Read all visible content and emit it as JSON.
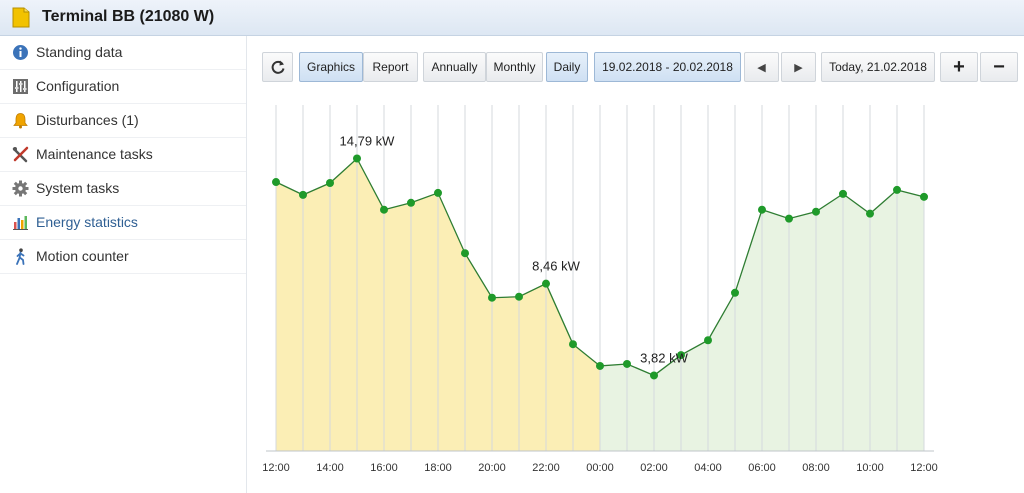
{
  "window": {
    "title": "Terminal BB (21080 W)"
  },
  "sidebar": {
    "items": [
      {
        "label": "Standing data",
        "icon": "info-icon",
        "active": false
      },
      {
        "label": "Configuration",
        "icon": "sliders-icon",
        "active": false
      },
      {
        "label": "Disturbances (1)",
        "icon": "bell-icon",
        "active": false
      },
      {
        "label": "Maintenance tasks",
        "icon": "tools-icon",
        "active": false
      },
      {
        "label": "System tasks",
        "icon": "gear-icon",
        "active": false
      },
      {
        "label": "Energy statistics",
        "icon": "bar-chart-icon",
        "active": true
      },
      {
        "label": "Motion counter",
        "icon": "walking-person-icon",
        "active": false
      }
    ]
  },
  "toolbar": {
    "refresh_icon": "refresh-icon",
    "graphics_label": "Graphics",
    "report_label": "Report",
    "annually_label": "Annually",
    "monthly_label": "Monthly",
    "daily_label": "Daily",
    "selected_view": "Graphics",
    "selected_period": "Daily",
    "date_range": "19.02.2018 - 20.02.2018",
    "prev_icon": "triangle-left-icon",
    "next_icon": "triangle-right-icon",
    "today_label": "Today, 21.02.2018",
    "zoom_in_label": "+",
    "zoom_out_label": "−"
  },
  "colors": {
    "line": "#2e7d32",
    "point": "#1f9a2a",
    "fill_day1": "#fbeeb5",
    "fill_day2": "#e8f3e2",
    "gridline": "#d4d8dd",
    "accent": "#2f5f93"
  },
  "chart_data": {
    "type": "area",
    "unit": "kW",
    "x_tick_labels": [
      "12:00",
      "14:00",
      "16:00",
      "18:00",
      "20:00",
      "22:00",
      "00:00",
      "02:00",
      "04:00",
      "06:00",
      "08:00",
      "10:00",
      "12:00"
    ],
    "x": [
      "12:00",
      "13:00",
      "14:00",
      "15:00",
      "16:00",
      "17:00",
      "18:00",
      "19:00",
      "20:00",
      "21:00",
      "22:00",
      "23:00",
      "00:00",
      "01:00",
      "02:00",
      "03:00",
      "04:00",
      "05:00",
      "06:00",
      "07:00",
      "08:00",
      "09:00",
      "10:00",
      "11:00",
      "12:00"
    ],
    "values": [
      13.6,
      12.95,
      13.55,
      14.79,
      12.2,
      12.55,
      13.05,
      10.0,
      7.75,
      7.8,
      8.46,
      5.4,
      4.3,
      4.4,
      3.82,
      4.85,
      5.6,
      8.0,
      12.2,
      11.75,
      12.1,
      13.0,
      12.0,
      13.2,
      12.85
    ],
    "y_range": [
      0,
      18
    ],
    "split_index": 12,
    "annotations": [
      {
        "index": 3,
        "label": "14,79 kW"
      },
      {
        "index": 10,
        "label": "8,46 kW"
      },
      {
        "index": 14,
        "label": "3,82 kW"
      }
    ],
    "grid": "vertical"
  }
}
